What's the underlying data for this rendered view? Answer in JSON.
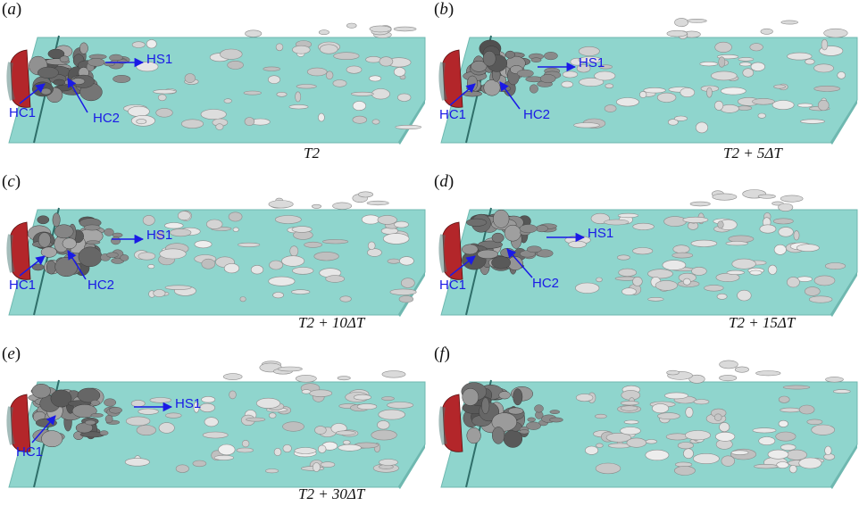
{
  "figure": {
    "panels": [
      {
        "label": "(a)",
        "time": "T2",
        "annotations": [
          "HS1",
          "HC1",
          "HC2"
        ]
      },
      {
        "label": "(b)",
        "time": "T2 + 5ΔT",
        "annotations": [
          "HS1",
          "HC1",
          "HC2"
        ]
      },
      {
        "label": "(c)",
        "time": "T2 + 10ΔT",
        "annotations": [
          "HS1",
          "HC1",
          "HC2"
        ]
      },
      {
        "label": "(d)",
        "time": "T2 + 15ΔT",
        "annotations": [
          "HS1",
          "HC1",
          "HC2"
        ]
      },
      {
        "label": "(e)",
        "time": "T2 + 30ΔT",
        "annotations": [
          "HS1",
          "HC1"
        ]
      },
      {
        "label": "(f)",
        "time": "",
        "annotations": []
      }
    ]
  },
  "colors": {
    "plate": "#8fd5cd",
    "plate_edge": "#6fb8b0",
    "wall": "#2f6f6a",
    "block": "#b3262a",
    "vortex_dark": "#6a6a6a",
    "vortex_light": "#e4e4e4",
    "arrow": "#1a1ae6"
  }
}
